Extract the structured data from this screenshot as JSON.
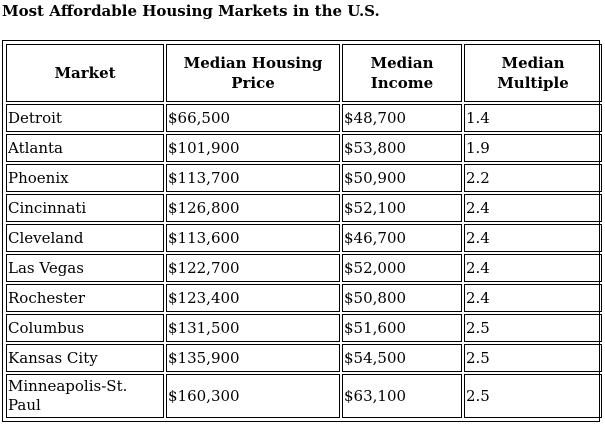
{
  "title": "Most Affordable Housing Markets in the U.S.",
  "table": {
    "headers": [
      {
        "line1": "Market",
        "line2": ""
      },
      {
        "line1": "Median Housing",
        "line2": "Price"
      },
      {
        "line1": "Median",
        "line2": "Income"
      },
      {
        "line1": "Median",
        "line2": "Multiple"
      }
    ],
    "rows": [
      {
        "market": "Detroit",
        "price": "$66,500",
        "income": "$48,700",
        "multiple": "1.4"
      },
      {
        "market": "Atlanta",
        "price": "$101,900",
        "income": "$53,800",
        "multiple": "1.9"
      },
      {
        "market": "Phoenix",
        "price": "$113,700",
        "income": "$50,900",
        "multiple": "2.2"
      },
      {
        "market": "Cincinnati",
        "price": "$126,800",
        "income": "$52,100",
        "multiple": "2.4"
      },
      {
        "market": "Cleveland",
        "price": "$113,600",
        "income": "$46,700",
        "multiple": "2.4"
      },
      {
        "market": "Las Vegas",
        "price": "$122,700",
        "income": "$52,000",
        "multiple": "2.4"
      },
      {
        "market": "Rochester",
        "price": "$123,400",
        "income": "$50,800",
        "multiple": "2.4"
      },
      {
        "market": "Columbus",
        "price": "$131,500",
        "income": "$51,600",
        "multiple": "2.5"
      },
      {
        "market": "Kansas City",
        "price": "$135,900",
        "income": "$54,500",
        "multiple": "2.5"
      },
      {
        "market": "Minneapolis-St. Paul",
        "price": "$160,300",
        "income": "$63,100",
        "multiple": "2.5"
      }
    ]
  }
}
